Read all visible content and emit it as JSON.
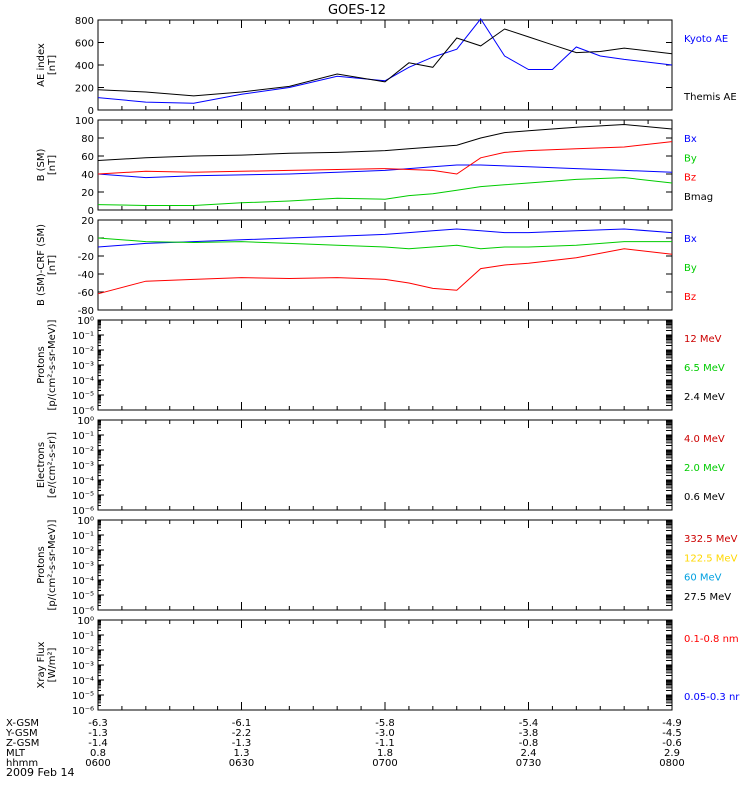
{
  "title": "GOES-12",
  "date": "2009 Feb 14",
  "time_ticks": [
    "0600",
    "0630",
    "0700",
    "0730",
    "0800"
  ],
  "ephemeris_rows": [
    {
      "label": "X-GSM",
      "values": [
        "-6.3",
        "-6.1",
        "-5.8",
        "-5.4",
        "-4.9"
      ]
    },
    {
      "label": "Y-GSM",
      "values": [
        "-1.3",
        "-2.2",
        "-3.0",
        "-3.8",
        "-4.5"
      ]
    },
    {
      "label": "Z-GSM",
      "values": [
        "-1.4",
        "-1.3",
        "-1.1",
        "-0.8",
        "-0.6"
      ]
    },
    {
      "label": "MLT",
      "values": [
        "0.8",
        "1.3",
        "1.8",
        "2.4",
        "2.9"
      ]
    },
    {
      "label": "hhmm",
      "values": [
        "0600",
        "0630",
        "0700",
        "0730",
        "0800"
      ]
    }
  ],
  "chart_data": [
    {
      "type": "line",
      "ylabel": [
        "AE index",
        "[nT]"
      ],
      "ylim": [
        0,
        800
      ],
      "yticks": [
        "0",
        "200",
        "400",
        "600",
        "800"
      ],
      "x": [
        "0600",
        "0610",
        "0620",
        "0630",
        "0640",
        "0650",
        "0700",
        "0705",
        "0710",
        "0715",
        "0720",
        "0725",
        "0730",
        "0735",
        "0740",
        "0745",
        "0750",
        "0800"
      ],
      "series": [
        {
          "name": "Kyoto AE",
          "color": "#0000ff",
          "values": [
            110,
            70,
            60,
            140,
            200,
            300,
            260,
            380,
            470,
            540,
            810,
            480,
            360,
            360,
            560,
            480,
            450,
            400
          ]
        },
        {
          "name": "Themis AE",
          "color": "#000000",
          "values": [
            180,
            160,
            125,
            160,
            210,
            320,
            250,
            420,
            380,
            640,
            570,
            720,
            650,
            580,
            510,
            520,
            550,
            500
          ]
        }
      ]
    },
    {
      "type": "line",
      "ylabel": [
        "B (SM)",
        "[nT]"
      ],
      "ylim": [
        0,
        100
      ],
      "yticks": [
        "0",
        "20",
        "40",
        "60",
        "80",
        "100"
      ],
      "x": [
        "0600",
        "0610",
        "0620",
        "0630",
        "0640",
        "0650",
        "0700",
        "0705",
        "0710",
        "0715",
        "0720",
        "0725",
        "0730",
        "0740",
        "0750",
        "0800"
      ],
      "series": [
        {
          "name": "Bx",
          "color": "#0000ff",
          "values": [
            40,
            36,
            38,
            39,
            40,
            42,
            44,
            46,
            48,
            50,
            50,
            49,
            48,
            46,
            44,
            42
          ]
        },
        {
          "name": "By",
          "color": "#00cc00",
          "values": [
            6,
            5,
            5,
            8,
            10,
            13,
            12,
            16,
            18,
            22,
            26,
            28,
            30,
            34,
            36,
            30
          ]
        },
        {
          "name": "Bz",
          "color": "#ff0000",
          "values": [
            40,
            43,
            42,
            43,
            44,
            45,
            46,
            45,
            44,
            40,
            58,
            64,
            66,
            68,
            70,
            76
          ]
        },
        {
          "name": "Bmag",
          "color": "#000000",
          "values": [
            55,
            58,
            60,
            61,
            63,
            64,
            66,
            68,
            70,
            72,
            80,
            86,
            88,
            92,
            95,
            90
          ]
        }
      ]
    },
    {
      "type": "line",
      "ylabel": [
        "B (SM)-CRF (SM)",
        "[nT]"
      ],
      "ylim": [
        -80,
        20
      ],
      "yticks": [
        "-80",
        "-60",
        "-40",
        "-20",
        "0",
        "20"
      ],
      "x": [
        "0600",
        "0610",
        "0620",
        "0630",
        "0640",
        "0650",
        "0700",
        "0705",
        "0710",
        "0715",
        "0720",
        "0725",
        "0730",
        "0740",
        "0750",
        "0800"
      ],
      "series": [
        {
          "name": "Bx",
          "color": "#0000ff",
          "values": [
            -10,
            -6,
            -4,
            -2,
            0,
            2,
            4,
            6,
            8,
            10,
            8,
            6,
            6,
            8,
            10,
            6
          ]
        },
        {
          "name": "By",
          "color": "#00cc00",
          "values": [
            0,
            -4,
            -5,
            -4,
            -6,
            -8,
            -10,
            -12,
            -10,
            -8,
            -12,
            -10,
            -10,
            -8,
            -4,
            -4
          ]
        },
        {
          "name": "Bz",
          "color": "#ff0000",
          "values": [
            -62,
            -48,
            -46,
            -44,
            -45,
            -44,
            -46,
            -50,
            -56,
            -58,
            -34,
            -30,
            -28,
            -22,
            -12,
            -18
          ]
        }
      ]
    },
    {
      "type": "line",
      "ylabel": [
        "Protons",
        "[p/(cm²-s-sr-MeV)]"
      ],
      "scale": "log",
      "yticks": [
        "10⁻⁶",
        "10⁻⁵",
        "10⁻⁴",
        "10⁻³",
        "10⁻²",
        "10⁻¹",
        "10⁰"
      ],
      "series": [
        {
          "name": "12 MeV",
          "color": "#cc0000",
          "values": []
        },
        {
          "name": "6.5 MeV",
          "color": "#00cc00",
          "values": []
        },
        {
          "name": "2.4 MeV",
          "color": "#000000",
          "values": []
        }
      ]
    },
    {
      "type": "line",
      "ylabel": [
        "Electrons",
        "[e/(cm²-s-sr)]"
      ],
      "scale": "log",
      "yticks": [
        "10⁻⁶",
        "10⁻⁵",
        "10⁻⁴",
        "10⁻³",
        "10⁻²",
        "10⁻¹",
        "10⁰"
      ],
      "series": [
        {
          "name": "4.0 MeV",
          "color": "#cc0000",
          "values": []
        },
        {
          "name": "2.0 MeV",
          "color": "#00cc00",
          "values": []
        },
        {
          "name": "0.6 MeV",
          "color": "#000000",
          "values": []
        }
      ]
    },
    {
      "type": "line",
      "ylabel": [
        "Protons",
        "[p/(cm²-s-sr-MeV)]"
      ],
      "scale": "log",
      "yticks": [
        "10⁻⁶",
        "10⁻⁵",
        "10⁻⁴",
        "10⁻³",
        "10⁻²",
        "10⁻¹",
        "10⁰"
      ],
      "series": [
        {
          "name": "332.5 MeV",
          "color": "#cc0000",
          "values": []
        },
        {
          "name": "122.5 MeV",
          "color": "#ffd700",
          "values": []
        },
        {
          "name": "60 MeV",
          "color": "#00a0e0",
          "values": []
        },
        {
          "name": "27.5 MeV",
          "color": "#000000",
          "values": []
        }
      ]
    },
    {
      "type": "line",
      "ylabel": [
        "Xray Flux",
        "[W/m²]"
      ],
      "scale": "log",
      "yticks": [
        "10⁻⁶",
        "10⁻⁵",
        "10⁻⁴",
        "10⁻³",
        "10⁻²",
        "10⁻¹",
        "10⁰"
      ],
      "series": [
        {
          "name": "0.1-0.8 nm",
          "color": "#ff0000",
          "values": []
        },
        {
          "name": "0.05-0.3 nr",
          "color": "#0000ff",
          "values": []
        }
      ]
    }
  ]
}
